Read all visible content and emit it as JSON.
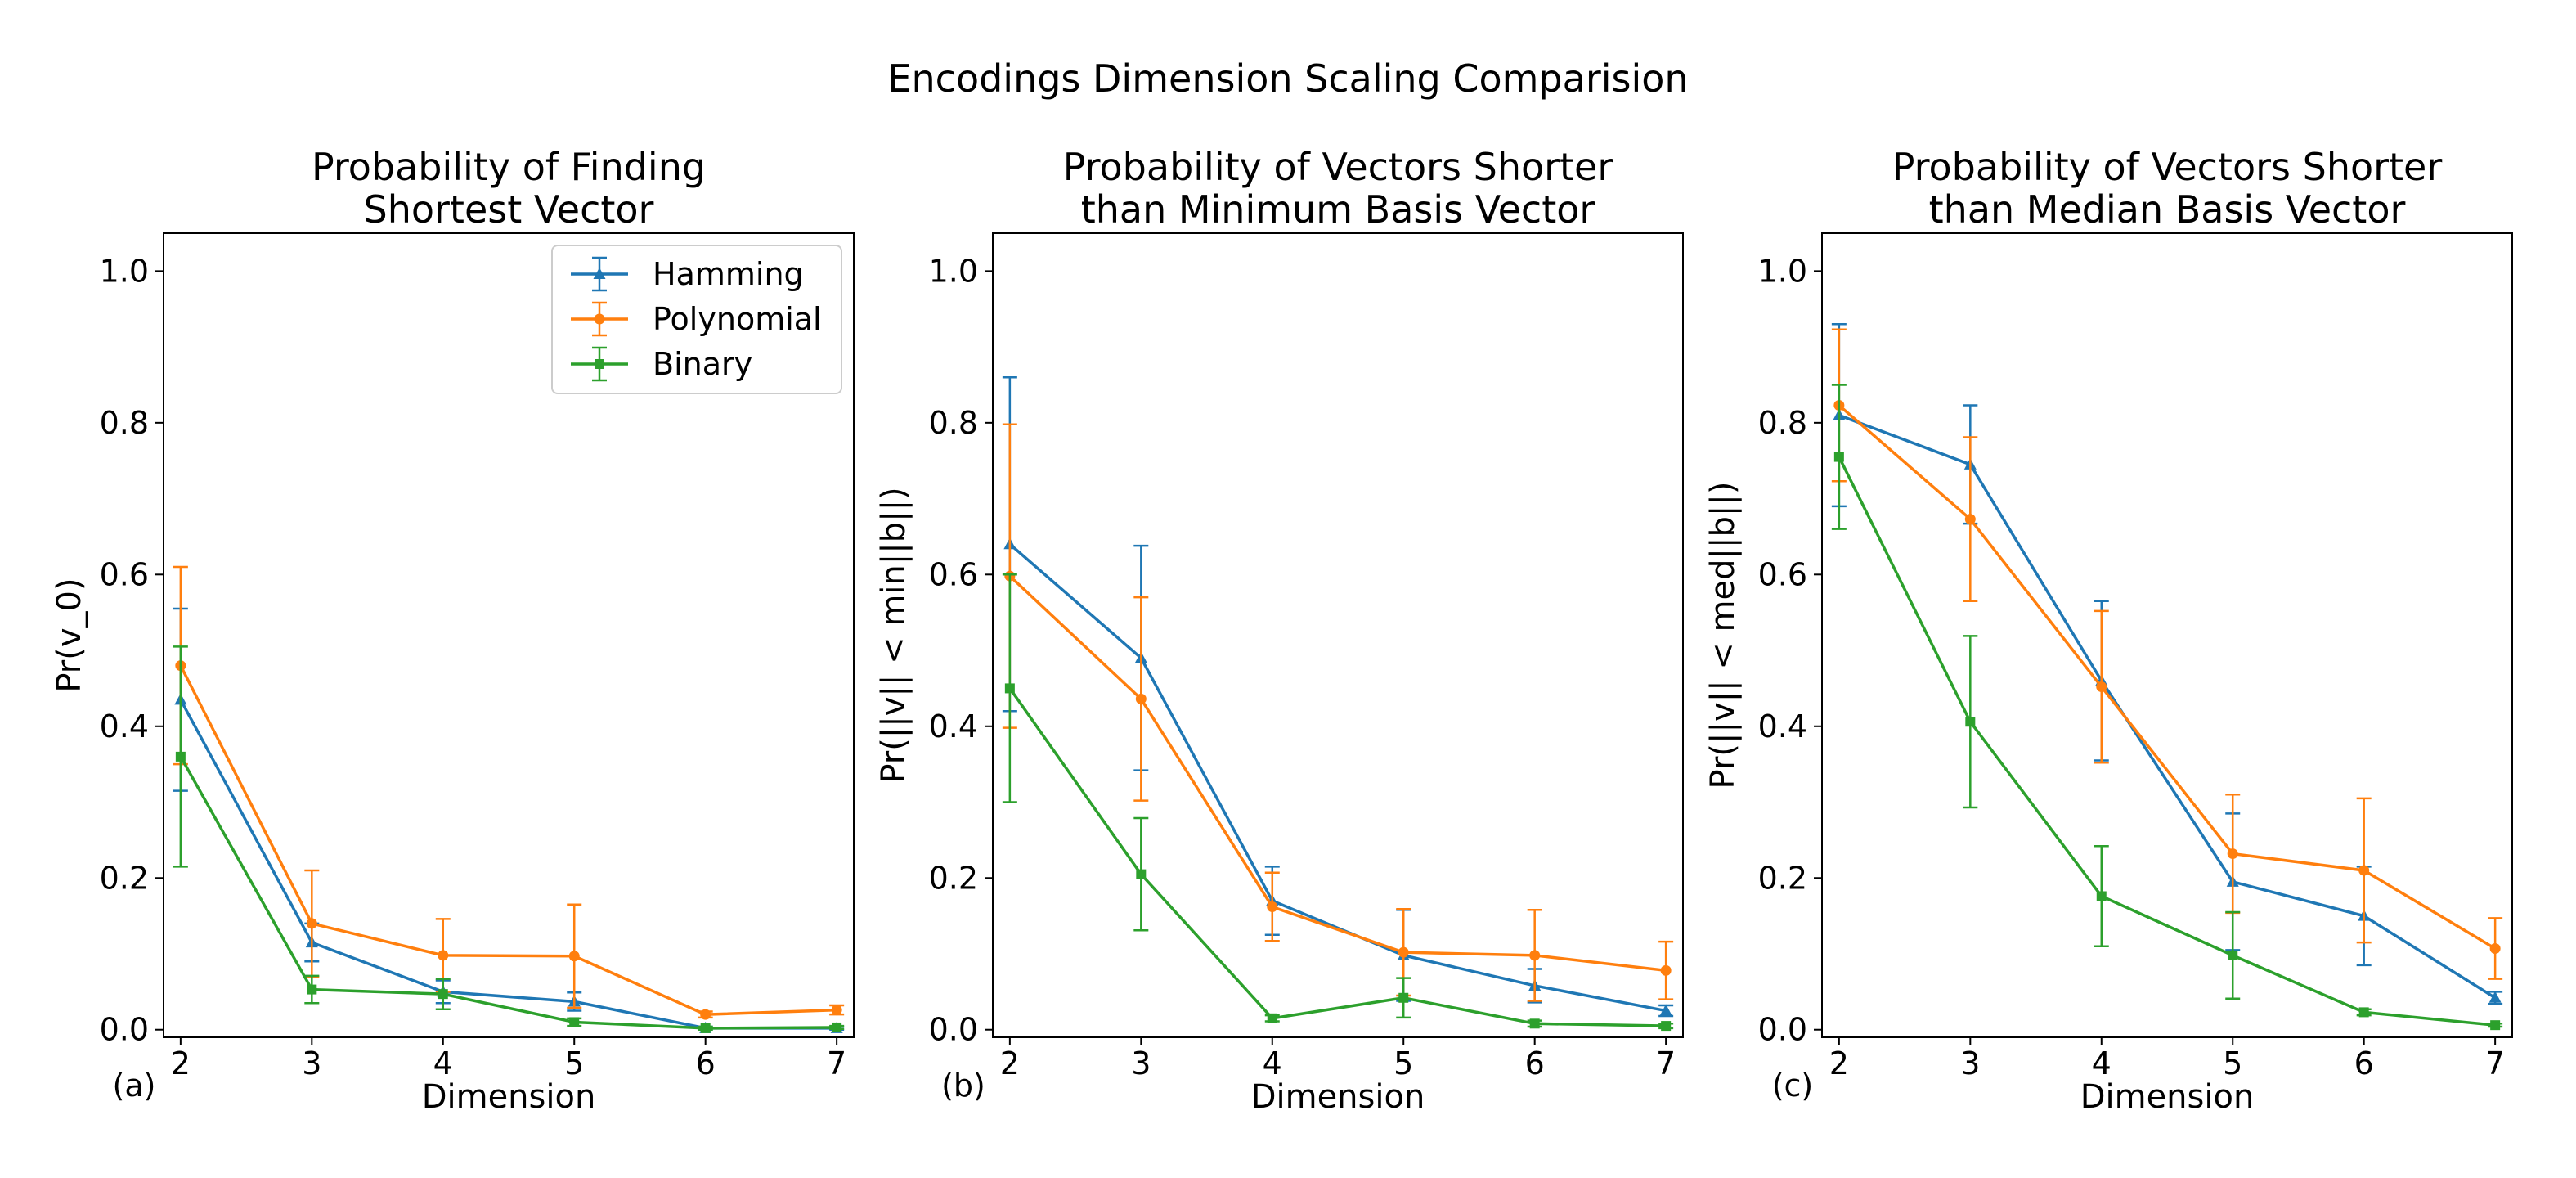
{
  "figure": {
    "suptitle": "Encodings Dimension Scaling Comparision"
  },
  "colors": {
    "Hamming": "#1f77b4",
    "Polynomial": "#ff7f0e",
    "Binary": "#2ca02c"
  },
  "markers": {
    "Hamming": "triangle",
    "Polynomial": "circle",
    "Binary": "square"
  },
  "legend": {
    "entries": [
      "Hamming",
      "Polynomial",
      "Binary"
    ],
    "location": "upper right of panel (a)"
  },
  "chart_data": [
    {
      "type": "line",
      "panel_label": "(a)",
      "title_lines": [
        "Probability of Finding",
        "Shortest Vector"
      ],
      "xlabel": "Dimension",
      "ylabel": "Pr(v_0)",
      "x": [
        2,
        3,
        4,
        5,
        6,
        7
      ],
      "xticks": [
        "2",
        "3",
        "4",
        "5",
        "6",
        "7"
      ],
      "yticks": [
        "0.0",
        "0.2",
        "0.4",
        "0.6",
        "0.8",
        "1.0"
      ],
      "xlim": [
        1.87,
        7.13
      ],
      "ylim": [
        -0.01,
        1.05
      ],
      "series": [
        {
          "name": "Hamming",
          "values": [
            0.435,
            0.115,
            0.05,
            0.037,
            0.002,
            0.002
          ],
          "errors": [
            0.12,
            0.025,
            0.015,
            0.012,
            0.002,
            0.002
          ]
        },
        {
          "name": "Polynomial",
          "values": [
            0.48,
            0.14,
            0.098,
            0.097,
            0.02,
            0.026
          ],
          "errors": [
            0.13,
            0.07,
            0.048,
            0.068,
            0.004,
            0.006
          ]
        },
        {
          "name": "Binary",
          "values": [
            0.36,
            0.053,
            0.047,
            0.01,
            0.002,
            0.003
          ],
          "errors": [
            0.145,
            0.018,
            0.02,
            0.005,
            0.002,
            0.002
          ]
        }
      ]
    },
    {
      "type": "line",
      "panel_label": "(b)",
      "title_lines": [
        "Probability of Vectors Shorter",
        "than Minimum Basis Vector"
      ],
      "xlabel": "Dimension",
      "ylabel": "Pr(||v|| < min||b||)",
      "x": [
        2,
        3,
        4,
        5,
        6,
        7
      ],
      "xticks": [
        "2",
        "3",
        "4",
        "5",
        "6",
        "7"
      ],
      "yticks": [
        "0.0",
        "0.2",
        "0.4",
        "0.6",
        "0.8",
        "1.0"
      ],
      "xlim": [
        1.87,
        7.13
      ],
      "ylim": [
        -0.01,
        1.05
      ],
      "series": [
        {
          "name": "Hamming",
          "values": [
            0.64,
            0.49,
            0.17,
            0.098,
            0.058,
            0.025
          ],
          "errors": [
            0.22,
            0.148,
            0.045,
            0.06,
            0.022,
            0.007
          ]
        },
        {
          "name": "Polynomial",
          "values": [
            0.598,
            0.436,
            0.162,
            0.102,
            0.098,
            0.078
          ],
          "errors": [
            0.2,
            0.134,
            0.045,
            0.057,
            0.06,
            0.038
          ]
        },
        {
          "name": "Binary",
          "values": [
            0.45,
            0.205,
            0.015,
            0.042,
            0.008,
            0.005
          ],
          "errors": [
            0.15,
            0.074,
            0.004,
            0.026,
            0.004,
            0.003
          ]
        }
      ]
    },
    {
      "type": "line",
      "panel_label": "(c)",
      "title_lines": [
        "Probability of Vectors Shorter",
        "than Median Basis Vector"
      ],
      "xlabel": "Dimension",
      "ylabel": "Pr(||v|| < med||b||)",
      "x": [
        2,
        3,
        4,
        5,
        6,
        7
      ],
      "xticks": [
        "2",
        "3",
        "4",
        "5",
        "6",
        "7"
      ],
      "yticks": [
        "0.0",
        "0.2",
        "0.4",
        "0.6",
        "0.8",
        "1.0"
      ],
      "xlim": [
        1.87,
        7.13
      ],
      "ylim": [
        -0.01,
        1.05
      ],
      "series": [
        {
          "name": "Hamming",
          "values": [
            0.81,
            0.745,
            0.46,
            0.195,
            0.15,
            0.042
          ],
          "errors": [
            0.12,
            0.078,
            0.105,
            0.09,
            0.065,
            0.008
          ]
        },
        {
          "name": "Polynomial",
          "values": [
            0.823,
            0.673,
            0.452,
            0.232,
            0.21,
            0.107
          ],
          "errors": [
            0.1,
            0.108,
            0.1,
            0.078,
            0.095,
            0.04
          ]
        },
        {
          "name": "Binary",
          "values": [
            0.755,
            0.406,
            0.176,
            0.098,
            0.023,
            0.006
          ],
          "errors": [
            0.095,
            0.113,
            0.066,
            0.057,
            0.004,
            0.002
          ]
        }
      ]
    }
  ]
}
